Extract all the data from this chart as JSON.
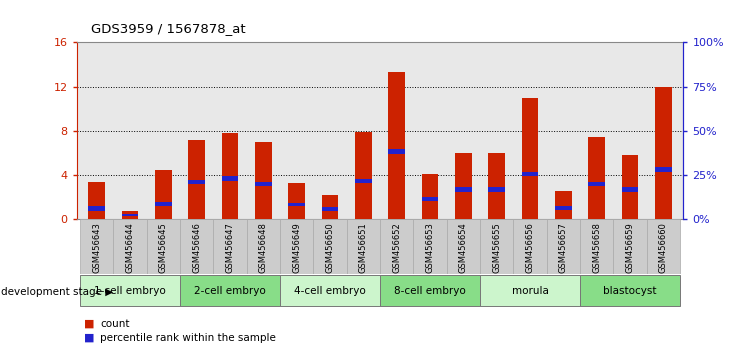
{
  "title": "GDS3959 / 1567878_at",
  "samples": [
    "GSM456643",
    "GSM456644",
    "GSM456645",
    "GSM456646",
    "GSM456647",
    "GSM456648",
    "GSM456649",
    "GSM456650",
    "GSM456651",
    "GSM456652",
    "GSM456653",
    "GSM456654",
    "GSM456655",
    "GSM456656",
    "GSM456657",
    "GSM456658",
    "GSM456659",
    "GSM456660"
  ],
  "counts": [
    3.4,
    0.8,
    4.5,
    7.2,
    7.8,
    7.0,
    3.3,
    2.2,
    7.9,
    13.3,
    4.1,
    6.0,
    6.0,
    11.0,
    2.6,
    7.5,
    5.8,
    12.0
  ],
  "pct_bottom": [
    0.8,
    0.3,
    1.2,
    3.2,
    3.5,
    3.0,
    1.2,
    0.8,
    3.3,
    5.9,
    1.7,
    2.5,
    2.5,
    3.9,
    0.9,
    3.0,
    2.5,
    4.3
  ],
  "pct_height": [
    0.4,
    0.2,
    0.4,
    0.4,
    0.4,
    0.4,
    0.3,
    0.3,
    0.4,
    0.5,
    0.35,
    0.4,
    0.4,
    0.4,
    0.3,
    0.4,
    0.4,
    0.45
  ],
  "stages": [
    {
      "label": "1-cell embryo",
      "start": 0,
      "end": 3,
      "color": "#ccf5cc"
    },
    {
      "label": "2-cell embryo",
      "start": 3,
      "end": 6,
      "color": "#88dd88"
    },
    {
      "label": "4-cell embryo",
      "start": 6,
      "end": 9,
      "color": "#ccf5cc"
    },
    {
      "label": "8-cell embryo",
      "start": 9,
      "end": 12,
      "color": "#88dd88"
    },
    {
      "label": "morula",
      "start": 12,
      "end": 15,
      "color": "#ccf5cc"
    },
    {
      "label": "blastocyst",
      "start": 15,
      "end": 18,
      "color": "#88dd88"
    }
  ],
  "bar_color": "#cc2200",
  "pct_color": "#2222cc",
  "ylim_left": [
    0,
    16
  ],
  "ylim_right": [
    0,
    100
  ],
  "yticks_left": [
    0,
    4,
    8,
    12,
    16
  ],
  "yticks_right": [
    0,
    25,
    50,
    75,
    100
  ],
  "ytick_labels_right": [
    "0%",
    "25%",
    "50%",
    "75%",
    "100%"
  ],
  "bar_width": 0.5,
  "axis_bg": "#e8e8e8",
  "xtick_bg": "#cccccc",
  "left_axis_color": "#cc2200",
  "right_axis_color": "#2222cc",
  "legend_count": "count",
  "legend_pct": "percentile rank within the sample",
  "dev_stage_label": "development stage"
}
